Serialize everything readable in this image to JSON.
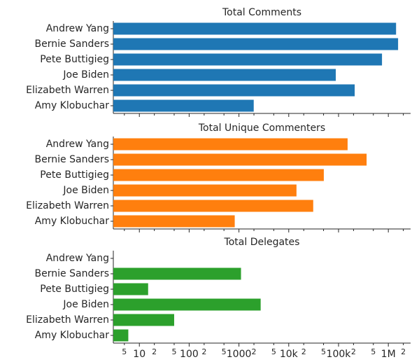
{
  "chart_data": [
    {
      "type": "bar",
      "orientation": "horizontal",
      "title": "Total Comments",
      "categories": [
        "Andrew Yang",
        "Bernie Sanders",
        "Pete Buttigieg",
        "Joe Biden",
        "Elizabeth Warren",
        "Amy Klobuchar"
      ],
      "values": [
        1430000,
        1570000,
        746000,
        88000,
        211000,
        1980
      ],
      "color": "#1f77b4",
      "xscale": "log",
      "xlim": [
        3,
        2800000
      ]
    },
    {
      "type": "bar",
      "orientation": "horizontal",
      "title": "Total Unique Commenters",
      "categories": [
        "Andrew Yang",
        "Bernie Sanders",
        "Pete Buttigieg",
        "Joe Biden",
        "Elizabeth Warren",
        "Amy Klobuchar"
      ],
      "values": [
        152000,
        366000,
        50600,
        14300,
        31000,
        823
      ],
      "color": "#ff7f0e",
      "xscale": "log",
      "xlim": [
        3,
        2800000
      ]
    },
    {
      "type": "bar",
      "orientation": "horizontal",
      "title": "Total Delegates",
      "categories": [
        "Andrew Yang",
        "Bernie Sanders",
        "Pete Buttigieg",
        "Joe Biden",
        "Elizabeth Warren",
        "Amy Klobuchar"
      ],
      "values": [
        0,
        1100,
        15,
        2730,
        50,
        6
      ],
      "color": "#2ca02c",
      "xscale": "log",
      "xlim": [
        3,
        2800000
      ],
      "xticks": [
        5,
        10,
        {
          "value": 20,
          "label": "2"
        },
        {
          "value": 50,
          "label": "5"
        },
        100,
        {
          "value": 200,
          "label": "2"
        },
        {
          "value": 500,
          "label": "5"
        },
        1000,
        {
          "value": 2000,
          "label": "2"
        },
        {
          "value": 5000,
          "label": "5"
        },
        {
          "value": 10000,
          "label": "10k"
        },
        {
          "value": 20000,
          "label": "2"
        },
        {
          "value": 50000,
          "label": "5"
        },
        {
          "value": 100000,
          "label": "100k"
        },
        {
          "value": 200000,
          "label": "2"
        },
        {
          "value": 500000,
          "label": "5"
        },
        {
          "value": 1000000,
          "label": "1M"
        },
        {
          "value": 2000000,
          "label": "2"
        }
      ]
    }
  ]
}
